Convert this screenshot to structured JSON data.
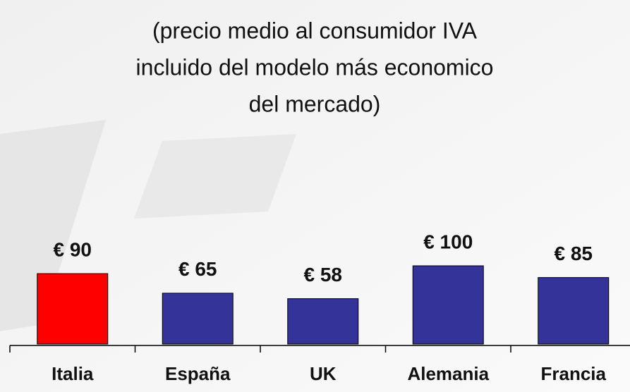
{
  "chart_data": {
    "type": "bar",
    "subtitle": [
      "(precio medio al consumidor IVA",
      "incluido del modelo más economico",
      "del mercado)"
    ],
    "categories": [
      "Italia",
      "España",
      "UK",
      "Alemania",
      "Francia"
    ],
    "values": [
      90,
      65,
      58,
      100,
      85
    ],
    "value_labels": [
      "€ 90",
      "€ 65",
      "€ 58",
      "€ 100",
      "€ 85"
    ],
    "colors": [
      "#ff0000",
      "#333399",
      "#333399",
      "#333399",
      "#333399"
    ]
  }
}
